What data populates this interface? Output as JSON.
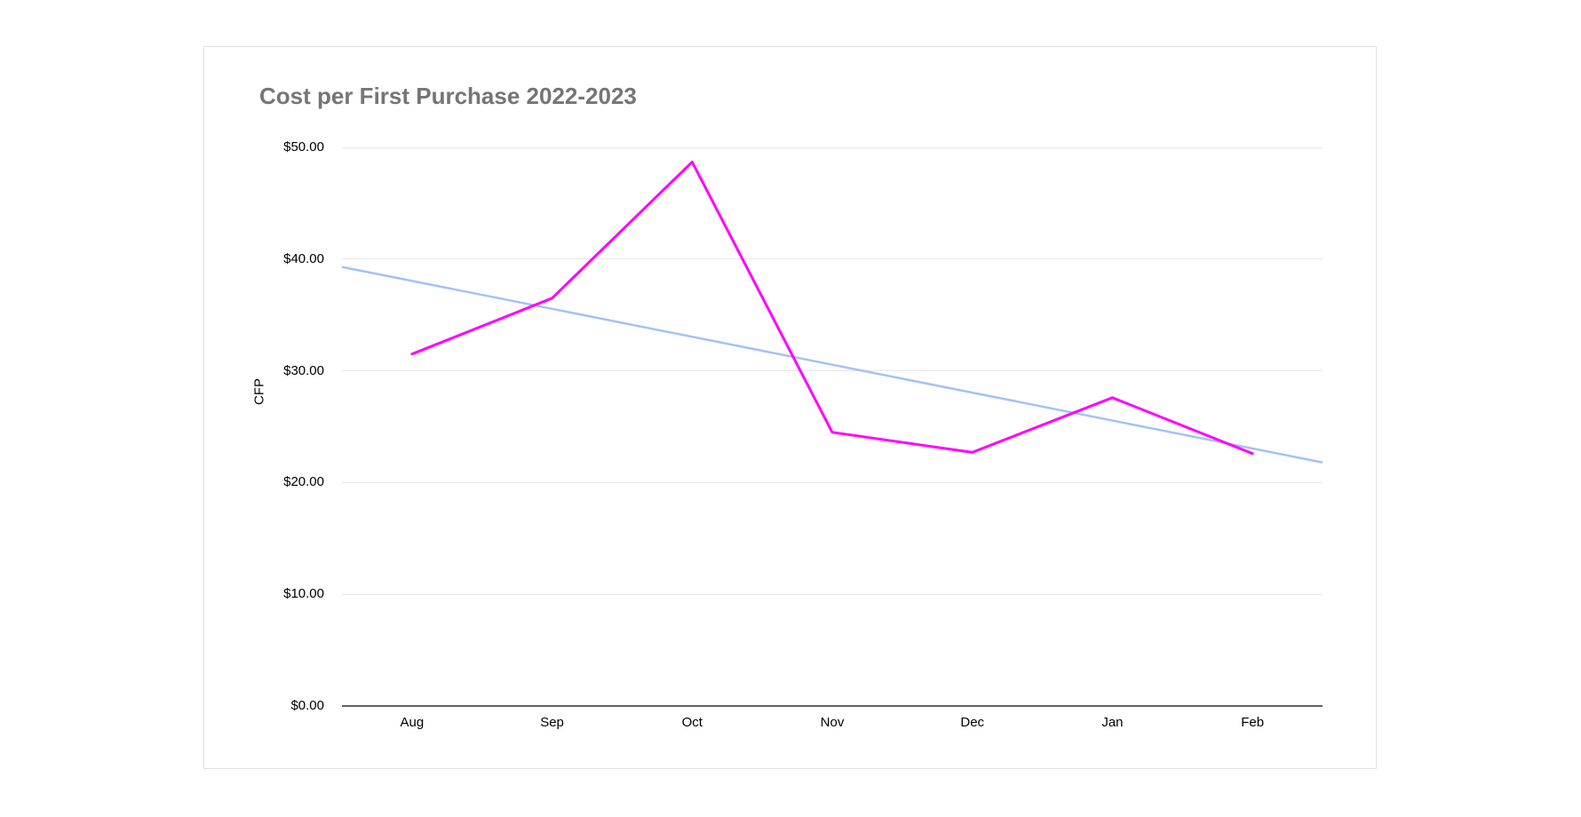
{
  "page": {
    "background_color": "#ffffff",
    "card_border_color": "#e0e0e0"
  },
  "chart": {
    "title": "Cost per First Purchase 2022-2023",
    "title_color": "#757575",
    "y_axis_title": "CFP"
  },
  "chart_data": {
    "type": "line",
    "title": "Cost per First Purchase 2022-2023",
    "xlabel": "",
    "ylabel": "CFP",
    "categories": [
      "Aug",
      "Sep",
      "Oct",
      "Nov",
      "Dec",
      "Jan",
      "Feb"
    ],
    "series": [
      {
        "values": [
          31.5,
          36.5,
          48.7,
          24.5,
          22.7,
          27.6,
          22.6
        ],
        "color": "#ff00ff",
        "stroke_width": 3
      }
    ],
    "trendline": {
      "start_value": 39.3,
      "end_value": 21.8,
      "color": "#a4c2f4",
      "stroke_width": 2.5,
      "span": "full-plot-width"
    },
    "ylim": [
      0,
      50
    ],
    "y_tick_interval": 10,
    "y_tick_labels": [
      "$0.00",
      "$10.00",
      "$20.00",
      "$30.00",
      "$40.00",
      "$50.00"
    ],
    "grid": true,
    "legend_position": "none",
    "gridline_color": "#e6e6e6",
    "axis_line_color": "#616161",
    "tick_label_color": "#000000"
  }
}
